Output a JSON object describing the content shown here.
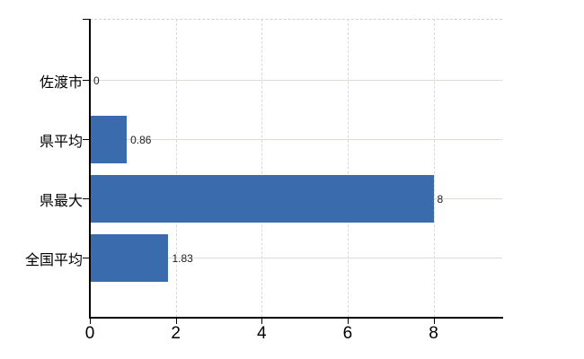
{
  "chart_data": {
    "type": "bar",
    "orientation": "horizontal",
    "title": "",
    "xlabel": "",
    "ylabel": "",
    "categories": [
      "佐渡市",
      "県平均",
      "県最大",
      "全国平均"
    ],
    "values": [
      0,
      0.86,
      8,
      1.83
    ],
    "value_labels": [
      "0",
      "0.86",
      "8",
      "1.83"
    ],
    "x_ticks": [
      0,
      2,
      4,
      6,
      8
    ],
    "x_tick_labels": [
      "0",
      "2",
      "4",
      "6",
      "8"
    ],
    "xlim": [
      0,
      9.6
    ],
    "grid": true,
    "legend": false
  },
  "colors": {
    "bar": "#3a6bac",
    "axis": "#000000",
    "grid_horizontal": "#d6ded6",
    "grid_vertical": "#d9d9d9",
    "plot_top_border": "#cfcfcf",
    "background": "#ffffff",
    "category_label": "#000000",
    "value_label": "#222222"
  }
}
